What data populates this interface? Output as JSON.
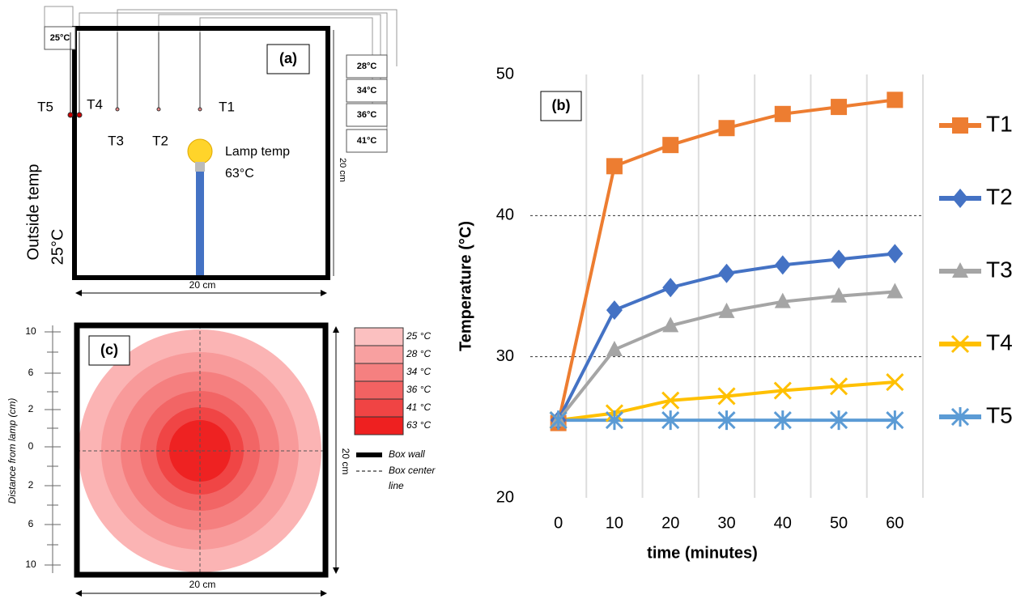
{
  "panel_a": {
    "label": "(a)",
    "outside_box_reading": "25°C",
    "readings": [
      "28°C",
      "34°C",
      "36°C",
      "41°C"
    ],
    "sensors": [
      "T5",
      "T4",
      "T3",
      "T2",
      "T1"
    ],
    "lamp_label": "Lamp temp",
    "lamp_temp": "63°C",
    "outside_label": "Outside temp",
    "outside_temp": "25°C",
    "width_label": "20 cm",
    "height_label": "20 cm"
  },
  "chart_data": {
    "type": "line",
    "label": "(b)",
    "xlabel": "time (minutes)",
    "ylabel": "Temperature (°C)",
    "x": [
      0,
      10,
      20,
      30,
      40,
      50,
      60
    ],
    "series": [
      {
        "name": "T1",
        "color": "#ed7d31",
        "marker": "square",
        "values": [
          25.3,
          43.5,
          45,
          46.2,
          47.2,
          47.7,
          48.2
        ]
      },
      {
        "name": "T2",
        "color": "#4472c4",
        "marker": "diamond",
        "values": [
          25.5,
          33.3,
          34.9,
          35.9,
          36.5,
          36.9,
          37.3
        ]
      },
      {
        "name": "T3",
        "color": "#a5a5a5",
        "marker": "triangle",
        "values": [
          25.5,
          30.5,
          32.2,
          33.2,
          33.9,
          34.3,
          34.6
        ]
      },
      {
        "name": "T4",
        "color": "#ffc000",
        "marker": "x",
        "values": [
          25.5,
          26,
          26.9,
          27.2,
          27.6,
          27.9,
          28.2
        ]
      },
      {
        "name": "T5",
        "color": "#5b9bd5",
        "marker": "star",
        "values": [
          25.5,
          25.5,
          25.5,
          25.5,
          25.5,
          25.5,
          25.5
        ]
      }
    ],
    "xlim": [
      -5,
      65
    ],
    "ylim": [
      20,
      50
    ],
    "xticks": [
      0,
      10,
      20,
      30,
      40,
      50,
      60
    ],
    "yticks": [
      20,
      30,
      40,
      50
    ],
    "grid": true,
    "legend_position": "right"
  },
  "panel_c": {
    "label": "(c)",
    "legend": [
      "25 °C",
      "28 °C",
      "34 °C",
      "36 °C",
      "41 °C",
      "63 °C"
    ],
    "wall_label": "Box wall",
    "center_line_label": [
      "Box center",
      "line"
    ],
    "axis_label": "Distance from lamp (cm)",
    "ruler_labels": [
      "10",
      "6",
      "2",
      "0",
      "2",
      "6",
      "10"
    ],
    "width_label": "20 cm",
    "height_label": "20 cm"
  }
}
